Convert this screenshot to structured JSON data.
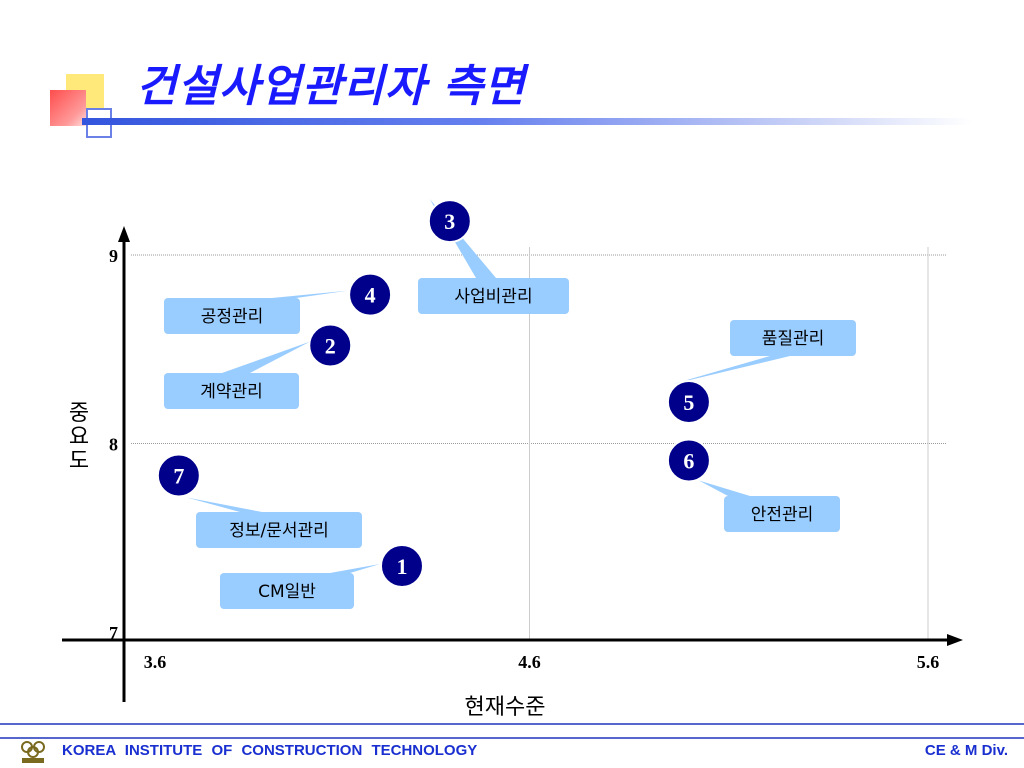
{
  "slide": {
    "title": "건설사업관리자 측면"
  },
  "footer": {
    "org_name": "KOREA  INSTITUTE  OF  CONSTRUCTION  TECHNOLOGY",
    "division": "CE & M Div."
  },
  "colors": {
    "title": "#1a1aff",
    "marker_fill": "#00008b",
    "callout_fill": "#99ccff",
    "footer_text": "#1a2fd0"
  },
  "chart_data": {
    "type": "scatter",
    "title": "",
    "xlabel": "현재수준",
    "ylabel": "중요도",
    "xlim": [
      3.6,
      5.6
    ],
    "ylim": [
      7,
      9
    ],
    "xticks": [
      3.6,
      4.6,
      5.6
    ],
    "yticks": [
      7,
      8,
      9
    ],
    "grid": true,
    "points": [
      {
        "id": "1",
        "label": "CM일반",
        "x": 4.28,
        "y": 7.35
      },
      {
        "id": "2",
        "label": "계약관리",
        "x": 4.1,
        "y": 8.52
      },
      {
        "id": "3",
        "label": "사업비관리",
        "x": 4.4,
        "y": 9.18
      },
      {
        "id": "4",
        "label": "공정관리",
        "x": 4.2,
        "y": 8.79
      },
      {
        "id": "5",
        "label": "품질관리",
        "x": 5.0,
        "y": 8.22
      },
      {
        "id": "6",
        "label": "안전관리",
        "x": 5.0,
        "y": 7.91
      },
      {
        "id": "7",
        "label": "정보/문서관리",
        "x": 3.72,
        "y": 7.83
      }
    ]
  }
}
